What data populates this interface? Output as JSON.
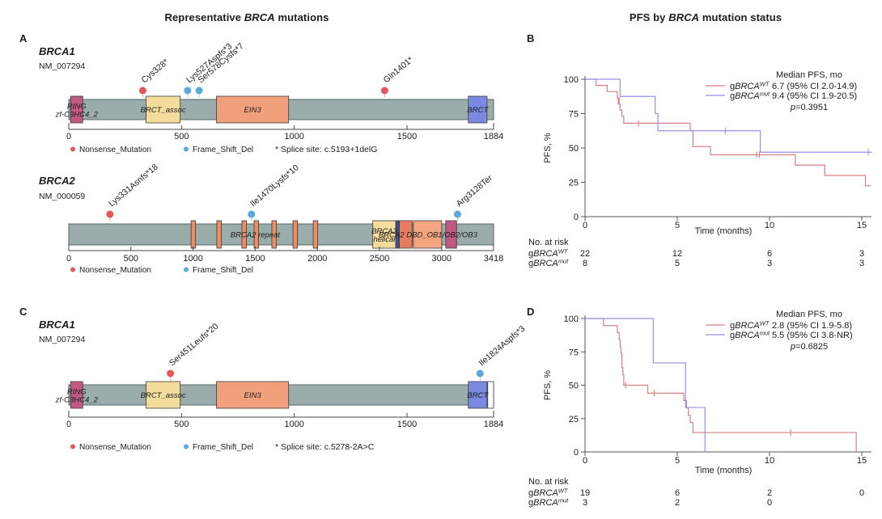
{
  "left_title": {
    "pre": "Representative ",
    "italic": "BRCA",
    "post": " mutations"
  },
  "right_title": {
    "pre": "PFS by ",
    "italic": "BRCA",
    "post": " mutation status"
  },
  "colors": {
    "backbone": "#9badab",
    "nonsense": "#e4555c",
    "frameshift": "#5aa7da",
    "km_wt": "#d87f84",
    "km_mut": "#9193e8"
  },
  "chart_data": [
    {
      "panel": "A",
      "type": "lollipop-mutation-diagram",
      "genes": [
        {
          "name": "BRCA1",
          "transcript": "NM_007294",
          "length": 1884,
          "axis_ticks": [
            0,
            500,
            1000,
            1500,
            1884
          ],
          "domains": [
            {
              "label": "RING",
              "label2": "zf-C3HC4_2",
              "start": 8,
              "end": 62,
              "color": "#c05a80"
            },
            {
              "label": "BRCT_assoc",
              "start": 343,
              "end": 494,
              "color": "#f3dc9c"
            },
            {
              "label": "EIN3",
              "start": 655,
              "end": 975,
              "color": "#f1a07c"
            },
            {
              "label": "BRCT",
              "start": 1772,
              "end": 1855,
              "color": "#7b89e0"
            }
          ],
          "mutations": [
            {
              "label": "Cys328*",
              "pos": 328,
              "type": "Nonsense_Mutation"
            },
            {
              "label": "Lys527Aspfs*3",
              "pos": 527,
              "type": "Frame_Shift_Del"
            },
            {
              "label": "Ser578Cysfs*7",
              "pos": 578,
              "type": "Frame_Shift_Del"
            },
            {
              "label": "Gln1401*",
              "pos": 1401,
              "type": "Nonsense_Mutation"
            }
          ],
          "legend": [
            {
              "label": "Nonsense_Mutation",
              "color": "#e4555c"
            },
            {
              "label": "Frame_Shift_Del",
              "color": "#5aa7da"
            }
          ],
          "legend_note": "* Splice site: c.5193+1delG"
        },
        {
          "name": "BRCA2",
          "transcript": "NM_000059",
          "length": 3418,
          "axis_ticks": [
            0,
            500,
            1000,
            1500,
            2000,
            2500,
            3000,
            3418
          ],
          "domains": [
            {
              "label": "",
              "start": 984,
              "end": 1020,
              "color": "#ee8d60"
            },
            {
              "label": "",
              "start": 1191,
              "end": 1227,
              "color": "#ee8d60"
            },
            {
              "label": "",
              "start": 1393,
              "end": 1429,
              "color": "#ee8d60"
            },
            {
              "label": "",
              "start": 1491,
              "end": 1527,
              "color": "#ee8d60"
            },
            {
              "label": "",
              "start": 1634,
              "end": 1670,
              "color": "#ee8d60"
            },
            {
              "label": "",
              "start": 1804,
              "end": 1840,
              "color": "#ee8d60"
            },
            {
              "label": "",
              "start": 1967,
              "end": 2003,
              "color": "#ee8d60"
            },
            {
              "label": "BRCA2",
              "label2": "helical",
              "start": 2446,
              "end": 2631,
              "color": "#f3dc9c"
            },
            {
              "label": "",
              "start": 2631,
              "end": 2660,
              "color": "#3d4e96"
            },
            {
              "label": "",
              "start": 2660,
              "end": 2762,
              "color": "#e87c5c"
            },
            {
              "label": "",
              "start": 2772,
              "end": 3001,
              "color": "#f2a57e"
            },
            {
              "label": "",
              "start": 3033,
              "end": 3120,
              "color": "#c05a80"
            }
          ],
          "backbone_labels": [
            {
              "text": "BRCA2 repeat",
              "pos": 1500
            }
          ],
          "span_labels": [
            {
              "text": "BRCA2 DBD_OB1/OB2/OB3",
              "pos": 2890
            }
          ],
          "mutations": [
            {
              "label": "Lys331Asnfs*18",
              "pos": 331,
              "type": "Nonsense_Mutation"
            },
            {
              "label": "Ile1470Lysfs*10",
              "pos": 1470,
              "type": "Frame_Shift_Del"
            },
            {
              "label": "Arg3128Ter",
              "pos": 3128,
              "type": "Frame_Shift_Del"
            }
          ],
          "legend": [
            {
              "label": "Nonsense_Mutation",
              "color": "#e4555c"
            },
            {
              "label": "Frame_Shift_Del",
              "color": "#5aa7da"
            }
          ]
        }
      ]
    },
    {
      "panel": "B",
      "type": "km-survival",
      "ylabel": "PFS, %",
      "xlabel": "Time (months)",
      "xticks": [
        0,
        5,
        10,
        15
      ],
      "yticks": [
        0,
        25,
        50,
        75,
        100
      ],
      "legend": {
        "header": "Median PFS, mo",
        "rows": [
          {
            "group": {
              "pre": "g",
              "italic": "BRCA",
              "sup": "WT"
            },
            "stat": "6.7 (95% CI 2.0-14.9)",
            "color": "#d87f84"
          },
          {
            "group": {
              "pre": "g",
              "italic": "BRCA",
              "sup": "mut"
            },
            "stat": "9.4 (95% CI 1.9-20.5)",
            "color": "#9193e8"
          }
        ],
        "p": {
          "italic": "p",
          "text": "=0.3951"
        }
      },
      "series": [
        {
          "name": "gBRCA-WT",
          "color": "#d87f84",
          "points": [
            [
              0,
              100
            ],
            [
              0.6,
              95.5
            ],
            [
              1.2,
              91
            ],
            [
              1.75,
              86.5
            ],
            [
              1.85,
              82
            ],
            [
              1.9,
              77.5
            ],
            [
              2.0,
              73
            ],
            [
              2.1,
              68
            ],
            [
              5.7,
              62.5
            ],
            [
              5.85,
              51
            ],
            [
              6.8,
              45
            ],
            [
              11.4,
              37.5
            ],
            [
              13.0,
              30
            ],
            [
              15.2,
              22.5
            ]
          ],
          "end": 15.5,
          "censors": [
            [
              1.8,
              84
            ],
            [
              2.9,
              68
            ],
            [
              9.3,
              45
            ],
            [
              9.45,
              45
            ]
          ]
        },
        {
          "name": "gBRCA-mut",
          "color": "#9193e8",
          "points": [
            [
              0,
              100
            ],
            [
              1.9,
              87.5
            ],
            [
              3.8,
              75
            ],
            [
              3.95,
              62.5
            ],
            [
              9.5,
              46.9
            ]
          ],
          "end": 15.55,
          "censors": [
            [
              7.6,
              62.5
            ],
            [
              15.35,
              46.9
            ]
          ]
        }
      ],
      "at_risk": {
        "title": "No. at risk",
        "rows": [
          {
            "group": {
              "pre": "g",
              "italic": "BRCA",
              "sup": "WT"
            },
            "counts": [
              "22",
              "12",
              "6",
              "3"
            ]
          },
          {
            "group": {
              "pre": "g",
              "italic": "BRCA",
              "sup": "mut"
            },
            "counts": [
              "8",
              "5",
              "3",
              "3"
            ]
          }
        ]
      }
    },
    {
      "panel": "C",
      "type": "lollipop-mutation-diagram",
      "genes": [
        {
          "name": "BRCA1",
          "transcript": "NM_007294",
          "length": 1884,
          "axis_ticks": [
            0,
            500,
            1000,
            1500,
            1884
          ],
          "domains": [
            {
              "label": "RING",
              "label2": "zf-C3HC4_2",
              "start": 8,
              "end": 62,
              "color": "#c05a80"
            },
            {
              "label": "BRCT_assoc",
              "start": 343,
              "end": 494,
              "color": "#f3dc9c"
            },
            {
              "label": "EIN3",
              "start": 655,
              "end": 975,
              "color": "#f1a07c"
            },
            {
              "label": "BRCT",
              "start": 1772,
              "end": 1855,
              "color": "#7b89e0"
            },
            {
              "label": "",
              "start": 1858,
              "end": 1884,
              "color": "#ffffff"
            }
          ],
          "mutations": [
            {
              "label": "Ser451Leufs*20",
              "pos": 451,
              "type": "Nonsense_Mutation"
            },
            {
              "label": "Ile1824Aspfs*3",
              "pos": 1824,
              "type": "Frame_Shift_Del"
            }
          ],
          "legend": [
            {
              "label": "Nonsense_Mutation",
              "color": "#e4555c"
            },
            {
              "label": "Frame_Shift_Del",
              "color": "#5aa7da"
            }
          ],
          "legend_note": "* Splice site: c.5278-2A>C"
        }
      ]
    },
    {
      "panel": "D",
      "type": "km-survival",
      "ylabel": "PFS, %",
      "xlabel": "Time (months)",
      "xticks": [
        0,
        5,
        10,
        15
      ],
      "yticks": [
        0,
        25,
        50,
        75,
        100
      ],
      "legend": {
        "header": "Median PFS, mo",
        "rows": [
          {
            "group": {
              "pre": "g",
              "italic": "BRCA",
              "sup": "WT"
            },
            "stat": "2.8 (95% CI 1.9-5.8)",
            "color": "#d87f84"
          },
          {
            "group": {
              "pre": "g",
              "italic": "BRCA",
              "sup": "mut"
            },
            "stat": "5.5 (95% CI 3.8-NR)",
            "color": "#9193e8"
          }
        ],
        "p": {
          "italic": "p",
          "text": "=0.6825"
        }
      },
      "series": [
        {
          "name": "gBRCA-WT",
          "color": "#d87f84",
          "points": [
            [
              0,
              100
            ],
            [
              1.0,
              94.7
            ],
            [
              1.75,
              89.5
            ],
            [
              1.85,
              84.2
            ],
            [
              1.9,
              78.9
            ],
            [
              1.95,
              73.7
            ],
            [
              2.0,
              63.2
            ],
            [
              2.05,
              57.9
            ],
            [
              2.1,
              50
            ],
            [
              3.4,
              44
            ],
            [
              5.35,
              38.5
            ],
            [
              5.5,
              33
            ],
            [
              5.6,
              27.5
            ],
            [
              5.7,
              22
            ],
            [
              5.85,
              14.5
            ],
            [
              14.7,
              0
            ]
          ],
          "end": 14.7,
          "censors": [
            [
              2.2,
              50
            ],
            [
              3.75,
              44
            ],
            [
              11.15,
              14.5
            ]
          ]
        },
        {
          "name": "gBRCA-mut",
          "color": "#9193e8",
          "points": [
            [
              0,
              100
            ],
            [
              3.7,
              66.7
            ],
            [
              5.45,
              33.3
            ],
            [
              6.5,
              0
            ]
          ],
          "end": 6.5,
          "censors": []
        }
      ],
      "at_risk": {
        "title": "No. at risk",
        "rows": [
          {
            "group": {
              "pre": "g",
              "italic": "BRCA",
              "sup": "WT"
            },
            "counts": [
              "19",
              "6",
              "2",
              "0"
            ]
          },
          {
            "group": {
              "pre": "g",
              "italic": "BRCA",
              "sup": "mut"
            },
            "counts": [
              "3",
              "2",
              "0",
              ""
            ]
          }
        ]
      }
    }
  ]
}
